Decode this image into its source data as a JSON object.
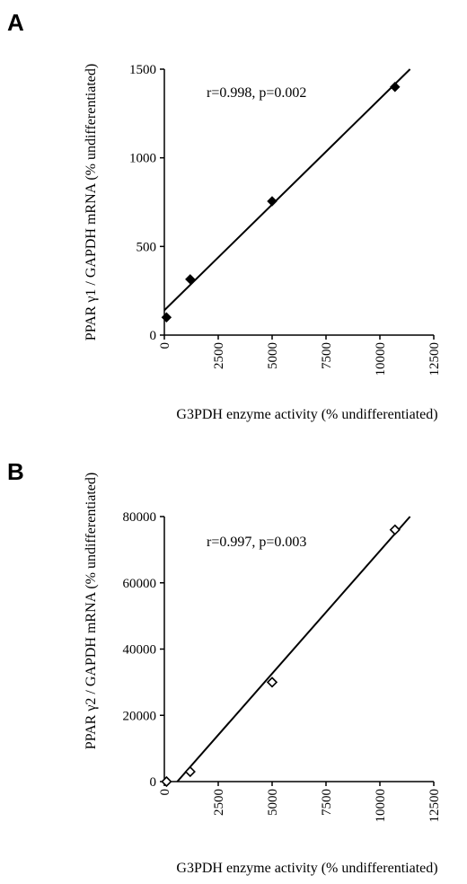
{
  "chart_data": [
    {
      "type": "scatter",
      "panel_label": "A",
      "annotation": "r=0.998, p=0.002",
      "xlabel": "G3PDH enzyme activity (% undifferentiated)",
      "ylabel": "PPAR γ1 / GAPDH mRNA (% undifferentiated)",
      "xlim": [
        0,
        12500
      ],
      "ylim": [
        0,
        1500
      ],
      "xticks": [
        "0",
        "2500",
        "5000",
        "7500",
        "10000",
        "12500"
      ],
      "yticks": [
        "0",
        "500",
        "1000",
        "1500"
      ],
      "marker": "filled-diamond",
      "points": [
        {
          "x": 100,
          "y": 100
        },
        {
          "x": 1200,
          "y": 315
        },
        {
          "x": 5000,
          "y": 755
        },
        {
          "x": 10700,
          "y": 1400
        }
      ],
      "fit": [
        {
          "x": 0,
          "y": 140
        },
        {
          "x": 11400,
          "y": 1500
        }
      ]
    },
    {
      "type": "scatter",
      "panel_label": "B",
      "annotation": "r=0.997, p=0.003",
      "xlabel": "G3PDH enzyme activity (% undifferentiated)",
      "ylabel": "PPAR γ2 / GAPDH mRNA (% undifferentiated)",
      "xlim": [
        0,
        12500
      ],
      "ylim": [
        0,
        80000
      ],
      "xticks": [
        "0",
        "2500",
        "5000",
        "7500",
        "10000",
        "12500"
      ],
      "yticks": [
        "0",
        "20000",
        "40000",
        "60000",
        "80000"
      ],
      "marker": "open-diamond",
      "points": [
        {
          "x": 100,
          "y": 0
        },
        {
          "x": 1200,
          "y": 3000
        },
        {
          "x": 5000,
          "y": 30000
        },
        {
          "x": 10700,
          "y": 76000
        }
      ],
      "fit": [
        {
          "x": 600,
          "y": 0
        },
        {
          "x": 11400,
          "y": 80000
        }
      ]
    }
  ]
}
